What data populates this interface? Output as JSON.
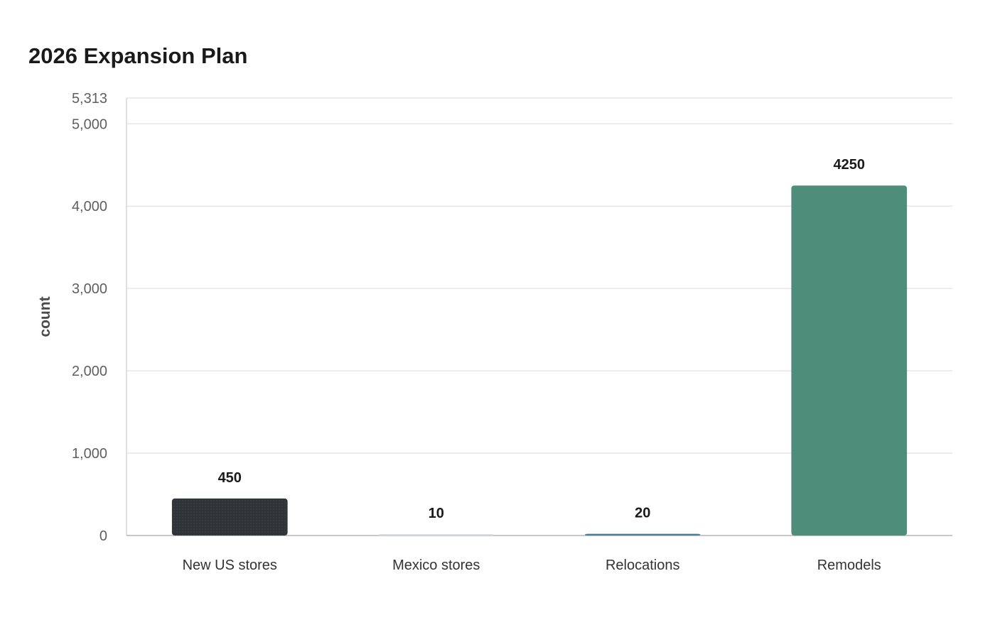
{
  "chart_data": {
    "type": "bar",
    "title": "2026 Expansion Plan",
    "xlabel": "",
    "ylabel": "count",
    "categories": [
      "New US stores",
      "Mexico stores",
      "Relocations",
      "Remodels"
    ],
    "values": [
      450,
      10,
      20,
      4250
    ],
    "value_labels": [
      "450",
      "10",
      "20",
      "4250"
    ],
    "bar_colors": [
      "#2e3438",
      "#d5dde2",
      "#4a7f9c",
      "#4e8d7a"
    ],
    "ylim": [
      0,
      5313
    ],
    "yticks": [
      0,
      1000,
      2000,
      3000,
      4000,
      5000,
      5313
    ],
    "ytick_labels": [
      "0",
      "1,000",
      "2,000",
      "3,000",
      "4,000",
      "5,000",
      "5,313"
    ],
    "grid": true,
    "legend": "none"
  }
}
